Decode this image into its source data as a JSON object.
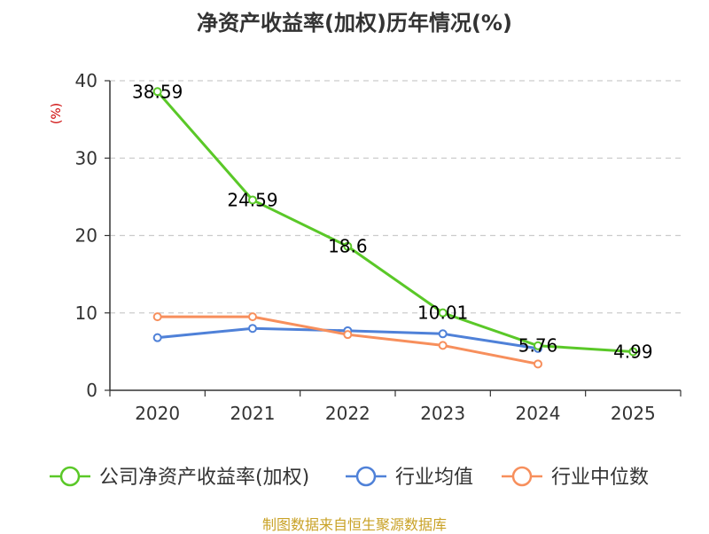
{
  "chart_data": {
    "type": "line",
    "title": "净资产收益率(加权)历年情况(%)",
    "ylabel": "(%)",
    "xlabel": "",
    "categories": [
      "2020",
      "2021",
      "2022",
      "2023",
      "2024",
      "2025"
    ],
    "ylim": [
      0,
      40
    ],
    "yticks": [
      0,
      10,
      20,
      30,
      40
    ],
    "grid": true,
    "legend_position": "bottom",
    "series": [
      {
        "name": "公司净资产收益率(加权)",
        "color": "#5ac828",
        "values": [
          38.59,
          24.59,
          18.6,
          10.01,
          5.76,
          4.99
        ],
        "labels": [
          "38.59",
          "24.59",
          "18.6",
          "10.01",
          "5.76",
          "4.99"
        ]
      },
      {
        "name": "行业均值",
        "color": "#4f81d8",
        "values": [
          6.8,
          8.0,
          7.7,
          7.3,
          5.4,
          null
        ]
      },
      {
        "name": "行业中位数",
        "color": "#f78f5c",
        "values": [
          9.5,
          9.5,
          7.2,
          5.8,
          3.4,
          null
        ]
      }
    ]
  },
  "source": "制图数据来自恒生聚源数据库"
}
